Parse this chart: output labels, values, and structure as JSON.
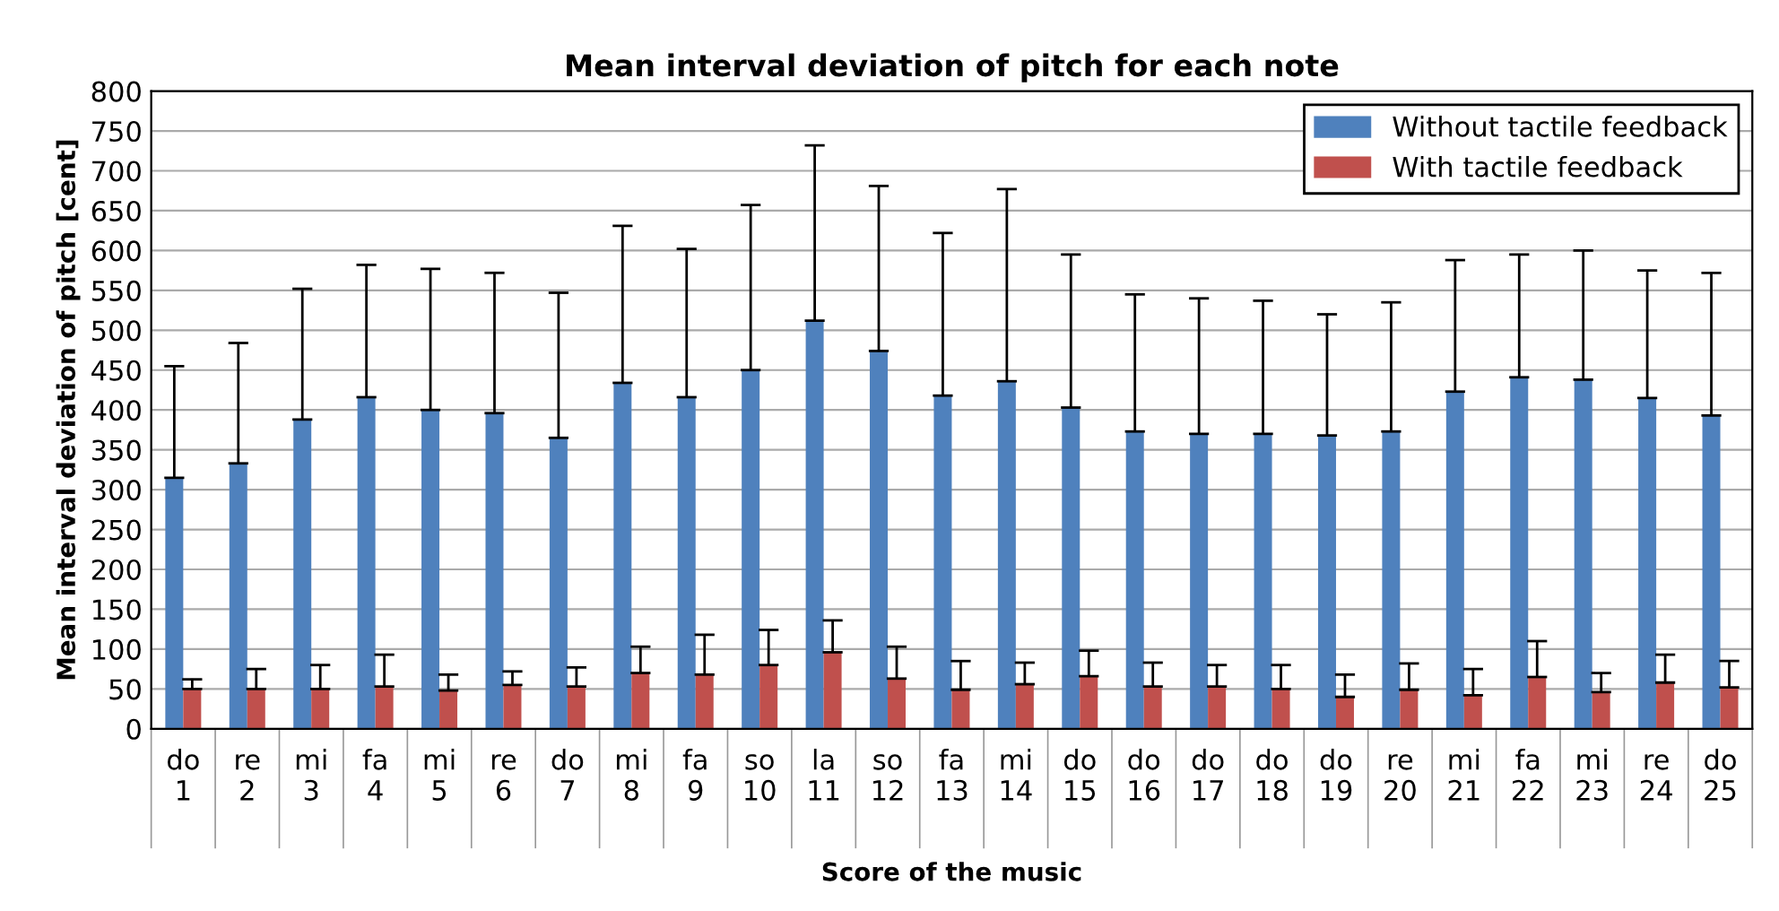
{
  "chart_data": {
    "type": "bar",
    "title": "Mean interval deviation of pitch for each note",
    "xlabel": "Score of the music",
    "ylabel": "Mean interval deviation of pitch [cent]",
    "categories": [
      "do\n1",
      "re\n2",
      "mi\n3",
      "fa\n4",
      "mi\n5",
      "re\n6",
      "do\n7",
      "mi\n8",
      "fa\n9",
      "so\n10",
      "la\n11",
      "so\n12",
      "fa\n13",
      "mi\n14",
      "do\n15",
      "do\n16",
      "do\n17",
      "do\n18",
      "do\n19",
      "re\n20",
      "mi\n21",
      "fa\n22",
      "mi\n23",
      "re\n24",
      "do\n25"
    ],
    "series": [
      {
        "name": "Without tactile feedback",
        "color": "#4f81bd",
        "values": [
          315,
          333,
          388,
          416,
          400,
          396,
          365,
          434,
          416,
          450,
          512,
          474,
          418,
          436,
          403,
          373,
          370,
          370,
          368,
          373,
          423,
          441,
          438,
          415,
          393
        ],
        "errors": [
          [
            315,
            455
          ],
          [
            333,
            484
          ],
          [
            388,
            552
          ],
          [
            416,
            582
          ],
          [
            400,
            577
          ],
          [
            396,
            572
          ],
          [
            365,
            547
          ],
          [
            434,
            631
          ],
          [
            416,
            602
          ],
          [
            450,
            657
          ],
          [
            512,
            732
          ],
          [
            474,
            681
          ],
          [
            418,
            622
          ],
          [
            436,
            677
          ],
          [
            403,
            595
          ],
          [
            373,
            545
          ],
          [
            370,
            540
          ],
          [
            370,
            537
          ],
          [
            368,
            520
          ],
          [
            373,
            535
          ],
          [
            423,
            588
          ],
          [
            441,
            595
          ],
          [
            438,
            600
          ],
          [
            415,
            575
          ],
          [
            393,
            572
          ]
        ]
      },
      {
        "name": "With tactile feedback",
        "color": "#c0504d",
        "values": [
          50,
          50,
          50,
          53,
          48,
          55,
          53,
          70,
          68,
          80,
          96,
          63,
          49,
          56,
          66,
          53,
          53,
          50,
          40,
          49,
          42,
          65,
          46,
          58,
          52
        ],
        "errors": [
          [
            50,
            62
          ],
          [
            50,
            75
          ],
          [
            50,
            80
          ],
          [
            53,
            93
          ],
          [
            48,
            68
          ],
          [
            55,
            72
          ],
          [
            53,
            77
          ],
          [
            70,
            103
          ],
          [
            68,
            118
          ],
          [
            80,
            124
          ],
          [
            96,
            136
          ],
          [
            63,
            103
          ],
          [
            49,
            85
          ],
          [
            56,
            83
          ],
          [
            66,
            98
          ],
          [
            53,
            83
          ],
          [
            53,
            80
          ],
          [
            50,
            80
          ],
          [
            40,
            68
          ],
          [
            49,
            82
          ],
          [
            42,
            75
          ],
          [
            65,
            110
          ],
          [
            46,
            70
          ],
          [
            58,
            93
          ],
          [
            52,
            85
          ]
        ]
      }
    ],
    "ylim": [
      0,
      800
    ],
    "yticks": [
      0,
      50,
      100,
      150,
      200,
      250,
      300,
      350,
      400,
      450,
      500,
      550,
      600,
      650,
      700,
      750,
      800
    ],
    "grid": "y",
    "legend": "top right"
  }
}
